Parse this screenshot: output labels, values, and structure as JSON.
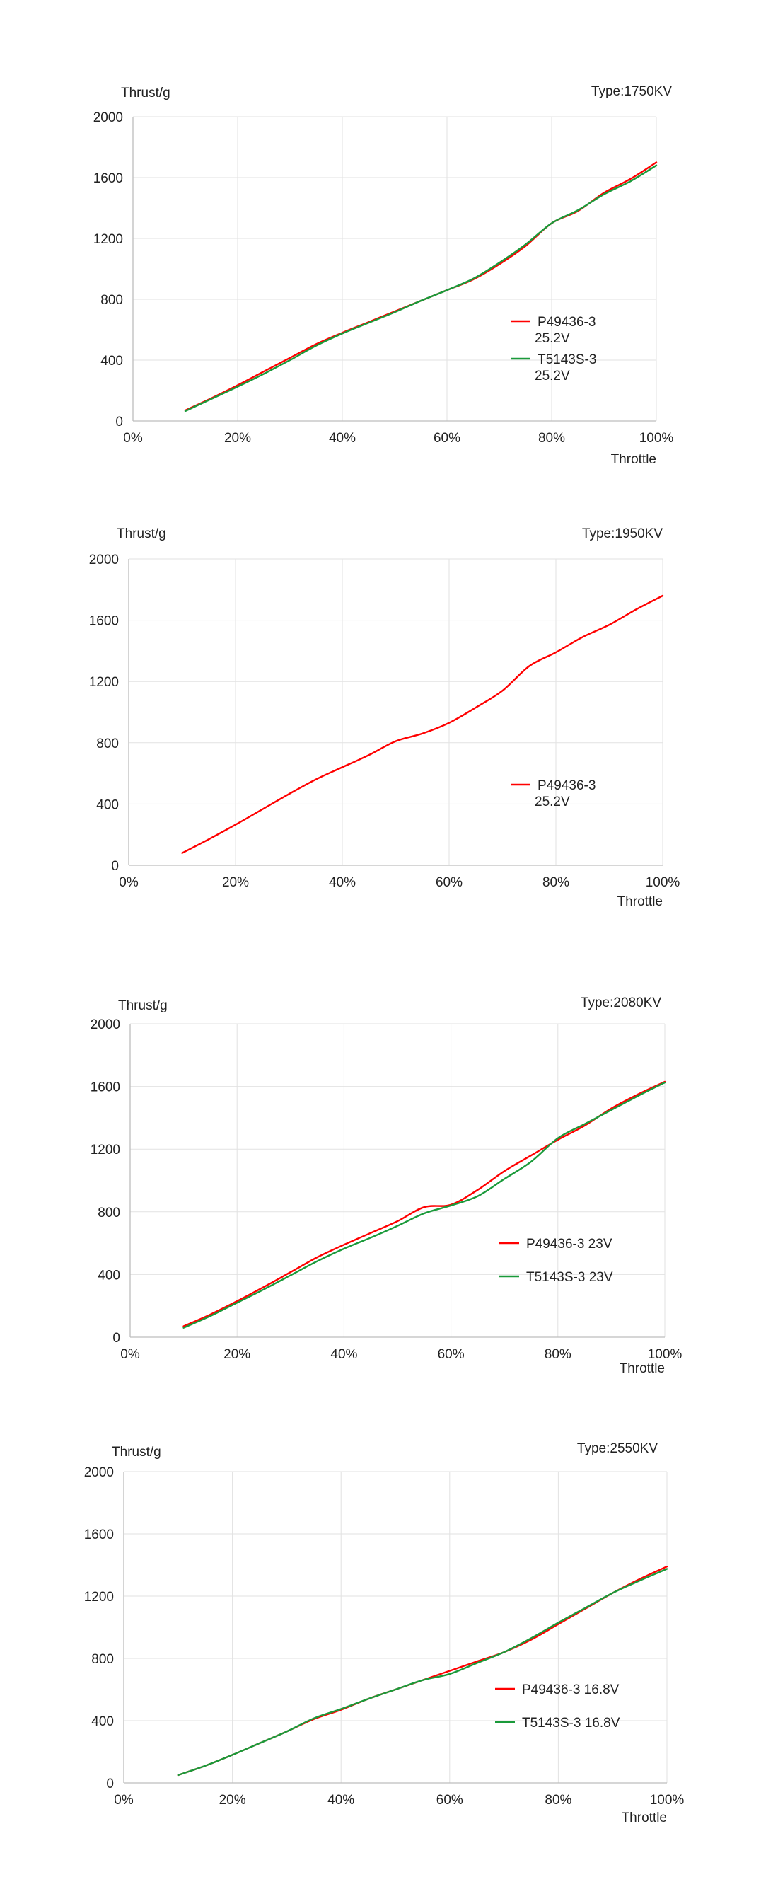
{
  "chart_data": [
    {
      "type": "line",
      "ylabel": "Thrust/g",
      "xlabel": "Throttle",
      "type_label": "Type:1750KV",
      "xlim": [
        0,
        100
      ],
      "ylim": [
        0,
        2000
      ],
      "x_tick_labels": [
        "0%",
        "20%",
        "40%",
        "60%",
        "80%",
        "100%"
      ],
      "y_tick_labels": [
        "0",
        "400",
        "800",
        "1200",
        "1600",
        "2000"
      ],
      "grid": true,
      "legend_position": "lower-right",
      "series": [
        {
          "name": "P49436-3 25.2V",
          "color": "#ff0000",
          "x": [
            10,
            15,
            20,
            25,
            30,
            35,
            40,
            45,
            50,
            55,
            60,
            65,
            70,
            75,
            80,
            85,
            90,
            95,
            100
          ],
          "y": [
            70,
            150,
            235,
            325,
            415,
            505,
            580,
            650,
            720,
            790,
            860,
            930,
            1030,
            1150,
            1300,
            1380,
            1500,
            1590,
            1700
          ]
        },
        {
          "name": "T5143S-3 25.2V",
          "color": "#1a9a3a",
          "x": [
            10,
            15,
            20,
            25,
            30,
            35,
            40,
            45,
            50,
            55,
            60,
            65,
            70,
            75,
            80,
            85,
            90,
            95,
            100
          ],
          "y": [
            65,
            145,
            225,
            310,
            400,
            495,
            575,
            645,
            715,
            790,
            860,
            935,
            1040,
            1160,
            1300,
            1385,
            1490,
            1575,
            1680
          ]
        }
      ]
    },
    {
      "type": "line",
      "ylabel": "Thrust/g",
      "xlabel": "Throttle",
      "type_label": "Type:1950KV",
      "xlim": [
        0,
        100
      ],
      "ylim": [
        0,
        2000
      ],
      "x_tick_labels": [
        "0%",
        "20%",
        "40%",
        "60%",
        "80%",
        "100%"
      ],
      "y_tick_labels": [
        "0",
        "400",
        "800",
        "1200",
        "1600",
        "2000"
      ],
      "grid": true,
      "legend_position": "lower-right",
      "series": [
        {
          "name": "P49436-3 25.2V",
          "color": "#ff0000",
          "x": [
            10,
            15,
            20,
            25,
            30,
            35,
            40,
            45,
            50,
            55,
            60,
            65,
            70,
            75,
            80,
            85,
            90,
            95,
            100
          ],
          "y": [
            80,
            170,
            265,
            365,
            465,
            560,
            640,
            720,
            810,
            860,
            930,
            1030,
            1140,
            1300,
            1390,
            1490,
            1570,
            1670,
            1760
          ]
        }
      ]
    },
    {
      "type": "line",
      "ylabel": "Thrust/g",
      "xlabel": "Throttle",
      "type_label": "Type:2080KV",
      "xlim": [
        0,
        100
      ],
      "ylim": [
        0,
        2000
      ],
      "x_tick_labels": [
        "0%",
        "20%",
        "40%",
        "60%",
        "80%",
        "100%"
      ],
      "y_tick_labels": [
        "0",
        "400",
        "800",
        "1200",
        "1600",
        "2000"
      ],
      "grid": true,
      "legend_position": "lower-right",
      "series": [
        {
          "name": "P49436-3 23V",
          "color": "#ff0000",
          "x": [
            10,
            15,
            20,
            25,
            30,
            35,
            40,
            45,
            50,
            55,
            60,
            65,
            70,
            75,
            80,
            85,
            90,
            95,
            100
          ],
          "y": [
            70,
            145,
            230,
            320,
            415,
            510,
            590,
            665,
            740,
            830,
            845,
            940,
            1060,
            1160,
            1260,
            1350,
            1460,
            1550,
            1630
          ]
        },
        {
          "name": "T5143S-3 23V",
          "color": "#1a9a3a",
          "x": [
            10,
            15,
            20,
            25,
            30,
            35,
            40,
            45,
            50,
            55,
            60,
            65,
            70,
            75,
            80,
            85,
            90,
            95,
            100
          ],
          "y": [
            60,
            135,
            220,
            305,
            395,
            485,
            565,
            635,
            710,
            790,
            840,
            900,
            1010,
            1120,
            1270,
            1360,
            1450,
            1540,
            1625
          ]
        }
      ]
    },
    {
      "type": "line",
      "ylabel": "Thrust/g",
      "xlabel": "Throttle",
      "type_label": "Type:2550KV",
      "xlim": [
        0,
        100
      ],
      "ylim": [
        0,
        2000
      ],
      "x_tick_labels": [
        "0%",
        "20%",
        "40%",
        "60%",
        "80%",
        "100%"
      ],
      "y_tick_labels": [
        "0",
        "400",
        "800",
        "1200",
        "1600",
        "2000"
      ],
      "grid": true,
      "legend_position": "lower-right",
      "series": [
        {
          "name": "P49436-3 16.8V",
          "color": "#ff0000",
          "x": [
            10,
            15,
            20,
            25,
            30,
            35,
            40,
            45,
            50,
            55,
            60,
            65,
            70,
            75,
            80,
            85,
            90,
            95,
            100
          ],
          "y": [
            50,
            110,
            180,
            255,
            330,
            410,
            470,
            540,
            600,
            660,
            720,
            780,
            840,
            920,
            1020,
            1120,
            1220,
            1310,
            1390
          ]
        },
        {
          "name": "T5143S-3 16.8V",
          "color": "#1a9a3a",
          "x": [
            10,
            15,
            20,
            25,
            30,
            35,
            40,
            45,
            50,
            55,
            60,
            65,
            70,
            75,
            80,
            85,
            90,
            95,
            100
          ],
          "y": [
            50,
            110,
            180,
            255,
            330,
            415,
            475,
            540,
            600,
            660,
            700,
            770,
            840,
            930,
            1030,
            1125,
            1220,
            1300,
            1375
          ]
        }
      ]
    }
  ]
}
